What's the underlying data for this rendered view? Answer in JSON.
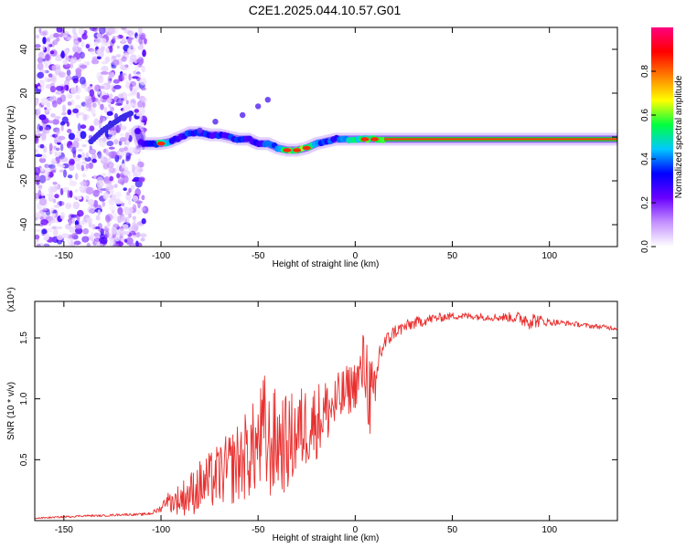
{
  "title": "C2E1.2025.044.10.57.G01",
  "colors": {
    "line": "#e8302f",
    "ridge_low": "#2d1fd8",
    "ridge_mid": "#21e04a",
    "ridge_high": "#ff2200",
    "noise": "#8a4ff0"
  },
  "chart_data": [
    {
      "type": "heatmap",
      "xlabel": "Height of straight line (km)",
      "ylabel": "Frequency (Hz)",
      "xlim": [
        -165,
        135
      ],
      "ylim": [
        -50,
        50
      ],
      "x_ticks": [
        -150,
        -100,
        -50,
        0,
        50,
        100
      ],
      "x_tick_labels": [
        "-150",
        "-100",
        "-50",
        "0",
        "50",
        "100"
      ],
      "y_ticks": [
        -40,
        -20,
        0,
        20,
        40
      ],
      "y_tick_labels": [
        "-40",
        "-20",
        "0",
        "20",
        "40"
      ],
      "colorbar": {
        "label": "Normalized spectral amplitude",
        "range": [
          0,
          1
        ],
        "ticks": [
          0.0,
          0.2,
          0.4,
          0.6,
          0.8
        ],
        "tick_labels": [
          "0.0",
          "0.2",
          "0.4",
          "0.6",
          "0.8"
        ],
        "colormap": [
          "#ffffff",
          "#c490ff",
          "#6a00ff",
          "#0000ff",
          "#00c8ff",
          "#00ff40",
          "#ffff00",
          "#ff7f00",
          "#ff0000",
          "#ff0080"
        ]
      },
      "noise_region_x": [
        -165,
        -108
      ],
      "ridge": {
        "x": [
          -136,
          -130,
          -125,
          -120,
          -115,
          -110,
          -105,
          -100,
          -95,
          -90,
          -85,
          -80,
          -75,
          -70,
          -65,
          -60,
          -55,
          -50,
          -45,
          -40,
          -35,
          -30,
          -25,
          -20,
          -15,
          -10,
          -5,
          0,
          5,
          10,
          15,
          20,
          30,
          40,
          50,
          60,
          70,
          80,
          90,
          100,
          110,
          120,
          135
        ],
        "freq": [
          -2,
          3,
          6,
          9,
          11,
          -3,
          -3,
          -3,
          -2,
          0,
          2,
          2,
          1,
          1,
          0,
          -1,
          -1,
          -3,
          -3,
          -5,
          -6,
          -6,
          -5,
          -3,
          -2,
          -1,
          -1,
          -1,
          -1,
          -1,
          -1,
          -1,
          -1,
          -1,
          -1,
          -1,
          -1,
          -1,
          -1,
          -1,
          -1,
          -1,
          -1
        ],
        "amp": [
          0.2,
          0.2,
          0.2,
          0.2,
          0.2,
          0.3,
          0.45,
          0.8,
          0.5,
          0.45,
          0.5,
          0.45,
          0.5,
          0.45,
          0.5,
          0.5,
          0.4,
          0.45,
          0.5,
          0.7,
          0.8,
          0.9,
          0.8,
          0.6,
          0.5,
          0.5,
          0.6,
          0.7,
          0.8,
          0.85,
          0.9,
          0.9,
          0.95,
          0.95,
          0.95,
          0.95,
          0.95,
          0.95,
          0.95,
          0.95,
          0.95,
          0.95,
          0.95
        ]
      },
      "spurs": [
        {
          "x": -80,
          "freq": 3
        },
        {
          "x": -72,
          "freq": 7
        },
        {
          "x": -58,
          "freq": 10
        },
        {
          "x": -50,
          "freq": 14
        },
        {
          "x": -45,
          "freq": 17
        }
      ]
    },
    {
      "type": "line",
      "xlabel": "Height of straight line (km)",
      "ylabel": "SNR (10 * v/v)",
      "scale_label": "(x10⁴)",
      "xlim": [
        -165,
        135
      ],
      "ylim": [
        0,
        1.8
      ],
      "x_ticks": [
        -150,
        -100,
        -50,
        0,
        50,
        100
      ],
      "x_tick_labels": [
        "-150",
        "-100",
        "-50",
        "0",
        "50",
        "100"
      ],
      "y_ticks": [
        0.5,
        1.0,
        1.5
      ],
      "y_tick_labels": [
        "0.5",
        "1.0",
        "1.5"
      ],
      "series": [
        {
          "x": [
            -165,
            -150,
            -140,
            -130,
            -120,
            -110,
            -105,
            -100,
            -97,
            -95,
            -90,
            -85,
            -80,
            -75,
            -70,
            -65,
            -60,
            -55,
            -50,
            -47,
            -45,
            -40,
            -35,
            -30,
            -25,
            -20,
            -15,
            -10,
            -5,
            0,
            3,
            5,
            8,
            10,
            12,
            15,
            20,
            30,
            40,
            50,
            60,
            70,
            80,
            85,
            90,
            95,
            100,
            110,
            120,
            135
          ],
          "values": [
            0.02,
            0.03,
            0.04,
            0.04,
            0.05,
            0.05,
            0.06,
            0.1,
            0.18,
            0.15,
            0.18,
            0.22,
            0.28,
            0.32,
            0.38,
            0.42,
            0.48,
            0.55,
            0.62,
            0.7,
            0.6,
            0.66,
            0.62,
            0.72,
            0.78,
            0.82,
            0.9,
            0.95,
            1.05,
            1.12,
            1.2,
            1.3,
            1.0,
            0.9,
            1.35,
            1.45,
            1.55,
            1.62,
            1.66,
            1.68,
            1.68,
            1.67,
            1.67,
            1.66,
            1.65,
            1.64,
            1.63,
            1.62,
            1.6,
            1.58
          ],
          "spread": [
            0.005,
            0.008,
            0.008,
            0.008,
            0.01,
            0.01,
            0.015,
            0.03,
            0.06,
            0.08,
            0.14,
            0.18,
            0.22,
            0.24,
            0.26,
            0.3,
            0.34,
            0.38,
            0.4,
            0.55,
            0.45,
            0.45,
            0.4,
            0.38,
            0.35,
            0.32,
            0.28,
            0.25,
            0.22,
            0.2,
            0.25,
            0.35,
            0.4,
            0.35,
            0.15,
            0.08,
            0.06,
            0.05,
            0.04,
            0.03,
            0.03,
            0.03,
            0.04,
            0.06,
            0.08,
            0.05,
            0.03,
            0.02,
            0.02,
            0.02
          ]
        }
      ]
    }
  ]
}
